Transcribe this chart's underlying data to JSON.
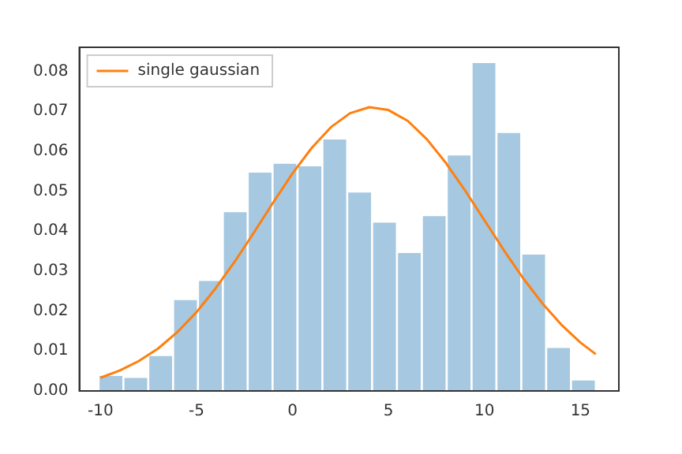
{
  "chart_data": {
    "type": "histogram",
    "bins": [
      -10.1,
      -8.81,
      -7.51,
      -6.22,
      -4.92,
      -3.63,
      -2.33,
      -1.04,
      0.26,
      1.56,
      2.85,
      4.15,
      5.44,
      6.74,
      8.03,
      9.33,
      10.62,
      11.92,
      13.21,
      14.51,
      15.8
    ],
    "series": [
      {
        "type": "histogram",
        "color": "#a6c8e0",
        "values": [
          0.004,
          0.0035,
          0.009,
          0.023,
          0.0278,
          0.045,
          0.0549,
          0.0571,
          0.0565,
          0.0632,
          0.0499,
          0.0424,
          0.0348,
          0.044,
          0.0592,
          0.0823,
          0.0648,
          0.0344,
          0.011,
          0.0029
        ]
      },
      {
        "type": "line",
        "name": "single gaussian",
        "color": "#ff7f0e",
        "x": [
          -10,
          -9,
          -8,
          -7,
          -6,
          -5,
          -4,
          -3,
          -2,
          -1,
          0,
          1,
          2,
          3,
          4,
          5,
          6,
          7,
          8,
          9,
          10,
          11,
          12,
          13,
          14,
          15,
          15.8
        ],
        "values": [
          0.0033,
          0.0051,
          0.0075,
          0.0106,
          0.0147,
          0.0197,
          0.0257,
          0.0324,
          0.0397,
          0.0472,
          0.0544,
          0.0608,
          0.066,
          0.0695,
          0.071,
          0.0703,
          0.0676,
          0.063,
          0.057,
          0.0501,
          0.0427,
          0.0353,
          0.0283,
          0.022,
          0.0166,
          0.0121,
          0.0092
        ]
      }
    ],
    "xlim": [
      -11.1,
      17.0
    ],
    "xticks": [
      -10,
      -5,
      0,
      5,
      10,
      15
    ],
    "ylim": [
      0,
      0.086
    ],
    "yticks": [
      {
        "value": 0,
        "label": "0.00"
      },
      {
        "value": 0.01,
        "label": "0.01"
      },
      {
        "value": 0.02,
        "label": "0.02"
      },
      {
        "value": 0.03,
        "label": "0.03"
      },
      {
        "value": 0.04,
        "label": "0.04"
      },
      {
        "value": 0.05,
        "label": "0.05"
      },
      {
        "value": 0.06,
        "label": "0.06"
      },
      {
        "value": 0.07,
        "label": "0.07"
      },
      {
        "value": 0.08,
        "label": "0.08"
      }
    ],
    "grid": false,
    "legend": "top left"
  }
}
